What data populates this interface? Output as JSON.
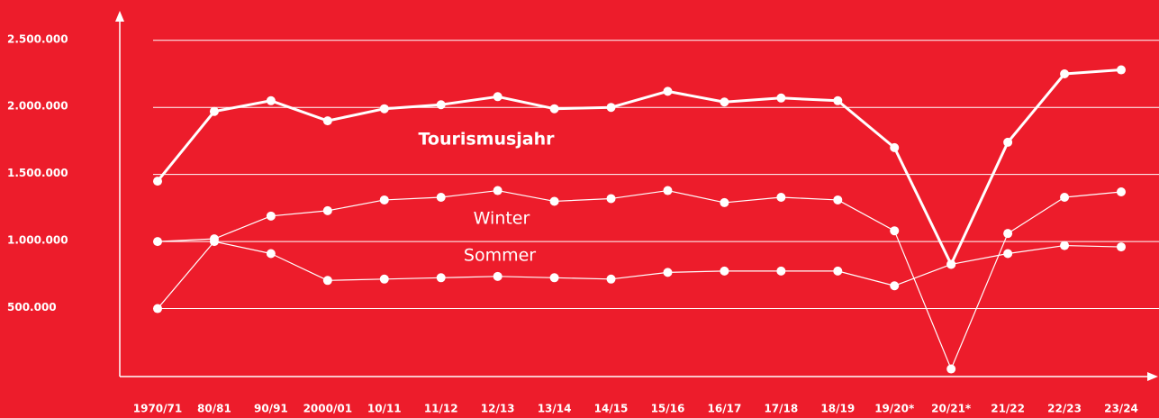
{
  "chart_data": {
    "type": "line",
    "categories": [
      "1970/71",
      "80/81",
      "90/91",
      "2000/01",
      "10/11",
      "11/12",
      "12/13",
      "13/14",
      "14/15",
      "15/16",
      "16/17",
      "17/18",
      "18/19",
      "19/20*",
      "20/21*",
      "21/22",
      "22/23",
      "23/24"
    ],
    "series": [
      {
        "name": "Tourismusjahr",
        "color": "#ffffff",
        "values": [
          1450000,
          1970000,
          2050000,
          1900000,
          1990000,
          2020000,
          2080000,
          1990000,
          2000000,
          2120000,
          2040000,
          2070000,
          2050000,
          1700000,
          830000,
          1740000,
          2250000,
          2280000
        ]
      },
      {
        "name": "Winter",
        "color": "#ffffff",
        "values": [
          1000000,
          1020000,
          1190000,
          1230000,
          1310000,
          1330000,
          1380000,
          1300000,
          1320000,
          1380000,
          1290000,
          1330000,
          1310000,
          1080000,
          50000,
          1060000,
          1330000,
          1370000
        ]
      },
      {
        "name": "Sommer",
        "color": "#ffffff",
        "values": [
          500000,
          1000000,
          910000,
          710000,
          720000,
          730000,
          740000,
          730000,
          720000,
          770000,
          780000,
          780000,
          780000,
          670000,
          830000,
          910000,
          970000,
          960000
        ]
      }
    ],
    "ylim": [
      0,
      2700000
    ],
    "yticks": [
      {
        "value": 500000,
        "label": "500.000"
      },
      {
        "value": 1000000,
        "label": "1.000.000"
      },
      {
        "value": 1500000,
        "label": "1.500.000"
      },
      {
        "value": 2000000,
        "label": "2.000.000"
      },
      {
        "value": 2500000,
        "label": "2.500.000"
      }
    ],
    "grid": true
  }
}
